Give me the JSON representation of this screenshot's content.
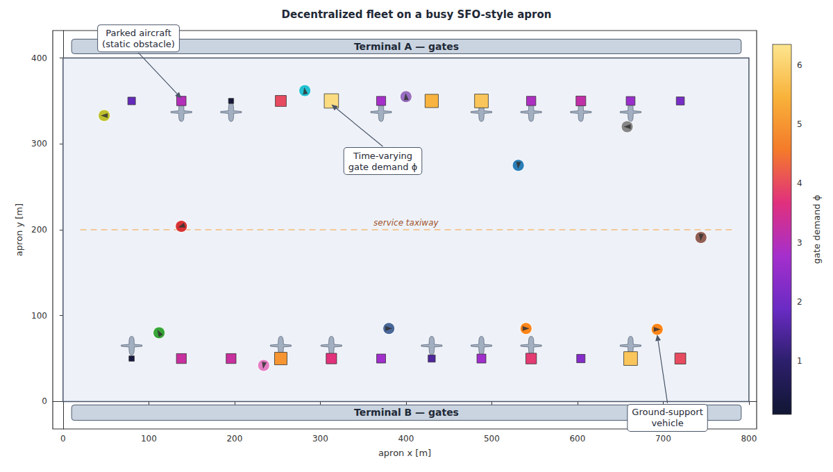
{
  "chart_data": {
    "type": "scatter",
    "title": "Decentralized fleet on a busy SFO-style apron",
    "x_label": "apron x [m]",
    "y_label": "apron y [m]",
    "xlim": [
      -12,
      809
    ],
    "xticks": [
      0,
      100,
      200,
      300,
      400,
      500,
      600,
      700,
      800
    ],
    "ylim": [
      -32,
      432
    ],
    "yticks": [
      0,
      100,
      200,
      300,
      400
    ],
    "grid": false,
    "apron": {
      "x": [
        0,
        800
      ],
      "y": [
        0,
        400
      ]
    },
    "terminals": [
      {
        "label": "Terminal A — gates",
        "x": [
          10,
          791
        ],
        "y": [
          405,
          422
        ]
      },
      {
        "label": "Terminal B — gates",
        "x": [
          10,
          791
        ],
        "y": [
          -22,
          -4
        ]
      }
    ],
    "taxiway": {
      "label": "service taxiway",
      "x": [
        20,
        780
      ],
      "y": 200,
      "line_style": "dashed",
      "color": "#f5b46a"
    },
    "gates": {
      "marker": "square",
      "x": [
        80,
        138,
        196,
        254,
        313,
        371,
        430,
        488,
        546,
        604,
        662,
        720,
        80,
        138,
        196,
        254,
        313,
        371,
        430,
        488,
        546,
        604,
        662,
        720
      ],
      "y": [
        350,
        350,
        350,
        350,
        350,
        350,
        350,
        350,
        350,
        350,
        350,
        350,
        50,
        50,
        50,
        50,
        50,
        50,
        50,
        50,
        50,
        50,
        50,
        50
      ],
      "demand": [
        1.8,
        3.0,
        0.2,
        4.0,
        6.2,
        2.8,
        5.5,
        5.8,
        2.9,
        3.2,
        2.6,
        2.1,
        0.3,
        3.3,
        3.3,
        5.0,
        3.7,
        2.7,
        1.5,
        2.7,
        3.8,
        2.3,
        5.8,
        4.0
      ]
    },
    "aircraft": {
      "x": [
        138,
        196,
        371,
        488,
        546,
        604,
        662,
        80,
        254,
        313,
        430,
        488,
        546,
        662
      ],
      "y": [
        337,
        337,
        337,
        337,
        337,
        337,
        337,
        65,
        65,
        65,
        65,
        65,
        65,
        65
      ]
    },
    "vehicles": {
      "x": [
        48,
        282,
        400,
        658,
        531,
        138,
        744,
        112,
        380,
        540,
        693,
        234
      ],
      "y": [
        333,
        362,
        355,
        320,
        275,
        204,
        191,
        80,
        85,
        85,
        84,
        42
      ],
      "heading": [
        180,
        100,
        95,
        180,
        265,
        200,
        265,
        120,
        0,
        0,
        0,
        260
      ],
      "colors": [
        "#bcbd22",
        "#17becf",
        "#9467bd",
        "#7f7f7f",
        "#1f77b4",
        "#d62728",
        "#8c564b",
        "#2ca02c",
        "#3f5f93",
        "#ff7f0e",
        "#ff7f0e",
        "#e377c2"
      ]
    },
    "colorbar": {
      "label": "gate demand ϕ",
      "range": [
        0.1,
        6.35
      ],
      "ticks": [
        1,
        2,
        3,
        4,
        5,
        6
      ],
      "colors": [
        "#111633",
        "#2c1f6b",
        "#6a2bc4",
        "#a52fcc",
        "#e0307e",
        "#f47a2a",
        "#f8b23a",
        "#fde58f"
      ]
    },
    "annotations": [
      {
        "text": "Parked aircraft\n(static obstacle)",
        "xy": [
          138,
          353
        ],
        "xytext": [
          88,
          423
        ]
      },
      {
        "text": "Time-varying\ngate demand ϕ",
        "xy": [
          313,
          346
        ],
        "xytext": [
          373,
          280
        ]
      },
      {
        "text": "Ground-support\nvehicle",
        "xy": [
          693,
          78
        ],
        "xytext": [
          705,
          -19
        ]
      }
    ]
  }
}
